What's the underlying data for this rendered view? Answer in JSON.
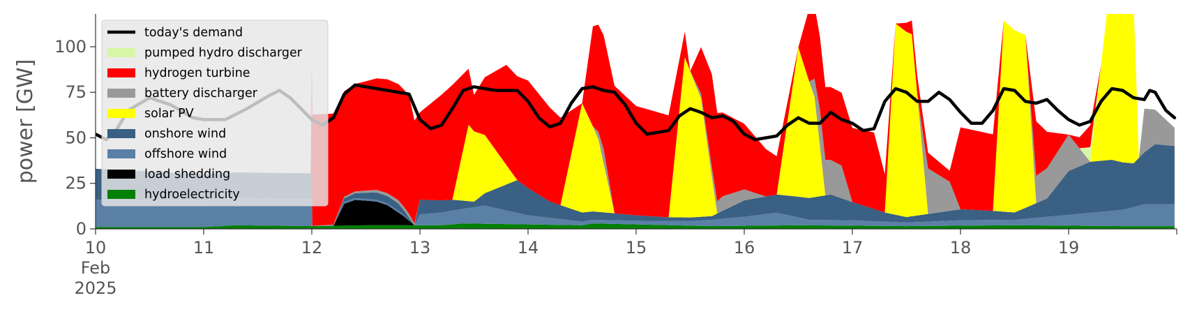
{
  "chart_data": {
    "type": "area",
    "ylabel": "power [GW]",
    "xlabel": "",
    "ylim": [
      0,
      118
    ],
    "yticks": [
      0,
      25,
      50,
      75,
      100
    ],
    "xlim": [
      10,
      20
    ],
    "xticks": [
      {
        "x": 10,
        "lines": [
          "10",
          "Feb",
          "2025"
        ]
      },
      {
        "x": 11,
        "lines": [
          "11"
        ]
      },
      {
        "x": 12,
        "lines": [
          "12"
        ]
      },
      {
        "x": 13,
        "lines": [
          "13"
        ]
      },
      {
        "x": 14,
        "lines": [
          "14"
        ]
      },
      {
        "x": 15,
        "lines": [
          "15"
        ]
      },
      {
        "x": 16,
        "lines": [
          "16"
        ]
      },
      {
        "x": 17,
        "lines": [
          "17"
        ]
      },
      {
        "x": 18,
        "lines": [
          "18"
        ]
      },
      {
        "x": 19,
        "lines": [
          "19"
        ]
      }
    ],
    "grid": false,
    "legend_position": "top-left",
    "series": [
      {
        "name": "hydroelectricity",
        "color": "#008000",
        "points": [
          [
            10,
            1
          ],
          [
            11,
            1
          ],
          [
            11.3,
            2
          ],
          [
            12,
            1.5
          ],
          [
            12.5,
            2
          ],
          [
            12.9,
            2
          ],
          [
            13.2,
            2
          ],
          [
            13.4,
            3
          ],
          [
            14.5,
            2
          ],
          [
            14.6,
            3
          ],
          [
            15.7,
            1.5
          ],
          [
            16.5,
            2
          ],
          [
            17.5,
            1.5
          ],
          [
            18.5,
            2
          ],
          [
            19.5,
            1.5
          ],
          [
            19.98,
            1.5
          ]
        ]
      },
      {
        "name": "load shedding",
        "color": "#000000",
        "points": [
          [
            12,
            0
          ],
          [
            12.2,
            0
          ],
          [
            12.3,
            12
          ],
          [
            12.4,
            14
          ],
          [
            12.6,
            13
          ],
          [
            12.7,
            11
          ],
          [
            12.85,
            5
          ],
          [
            12.95,
            0
          ],
          [
            19.98,
            0
          ]
        ]
      },
      {
        "name": "offshore wind",
        "color": "#5b80a6",
        "points": [
          [
            10,
            15
          ],
          [
            11,
            15
          ],
          [
            12,
            15
          ],
          [
            12,
            0
          ],
          [
            12.2,
            0
          ],
          [
            12.3,
            1
          ],
          [
            12.8,
            1
          ],
          [
            12.95,
            0
          ],
          [
            13,
            6
          ],
          [
            13.4,
            8
          ],
          [
            13.6,
            10
          ],
          [
            14,
            5
          ],
          [
            14.5,
            2
          ],
          [
            15,
            2
          ],
          [
            15.5,
            2.5
          ],
          [
            16,
            5
          ],
          [
            16.3,
            7
          ],
          [
            16.6,
            3
          ],
          [
            17,
            3
          ],
          [
            17.5,
            2
          ],
          [
            18,
            3
          ],
          [
            18.5,
            3
          ],
          [
            19,
            6
          ],
          [
            19.5,
            9
          ],
          [
            19.7,
            12
          ],
          [
            19.98,
            12
          ]
        ]
      },
      {
        "name": "onshore wind",
        "color": "#3a6083",
        "points": [
          [
            10,
            17
          ],
          [
            11,
            14
          ],
          [
            11.5,
            14
          ],
          [
            12,
            14
          ],
          [
            12,
            0
          ],
          [
            12.2,
            0
          ],
          [
            12.3,
            2
          ],
          [
            12.6,
            4
          ],
          [
            12.8,
            4
          ],
          [
            12.95,
            0
          ],
          [
            13,
            8
          ],
          [
            13.3,
            6
          ],
          [
            13.5,
            3
          ],
          [
            13.9,
            18
          ],
          [
            14.2,
            9
          ],
          [
            14.5,
            5
          ],
          [
            15,
            3
          ],
          [
            15.3,
            2
          ],
          [
            15.7,
            2
          ],
          [
            16,
            9
          ],
          [
            16.3,
            10
          ],
          [
            16.6,
            12
          ],
          [
            16.8,
            14
          ],
          [
            17,
            10
          ],
          [
            17.3,
            5
          ],
          [
            17.5,
            3
          ],
          [
            18,
            6
          ],
          [
            18.3,
            5
          ],
          [
            18.5,
            4
          ],
          [
            18.8,
            10
          ],
          [
            19,
            24
          ],
          [
            19.2,
            28
          ],
          [
            19.4,
            28
          ],
          [
            19.6,
            24
          ],
          [
            19.8,
            33
          ],
          [
            19.98,
            32
          ]
        ]
      },
      {
        "name": "solar PV",
        "color": "#ffff00",
        "points": [
          [
            10,
            0
          ],
          [
            12.95,
            0
          ],
          [
            13.3,
            0
          ],
          [
            13.45,
            42
          ],
          [
            13.6,
            32
          ],
          [
            13.9,
            0
          ],
          [
            14.3,
            0
          ],
          [
            14.5,
            60
          ],
          [
            14.65,
            40
          ],
          [
            14.8,
            0
          ],
          [
            15.3,
            0
          ],
          [
            15.45,
            88
          ],
          [
            15.6,
            65
          ],
          [
            15.75,
            0
          ],
          [
            16.3,
            0
          ],
          [
            16.5,
            82
          ],
          [
            16.65,
            55
          ],
          [
            16.75,
            0
          ],
          [
            17.3,
            0
          ],
          [
            17.4,
            105
          ],
          [
            17.55,
            100
          ],
          [
            17.7,
            0
          ],
          [
            18.3,
            0
          ],
          [
            18.4,
            105
          ],
          [
            18.6,
            95
          ],
          [
            18.7,
            0
          ],
          [
            19.2,
            0
          ],
          [
            19.4,
            105
          ],
          [
            19.6,
            90
          ],
          [
            19.65,
            0
          ],
          [
            19.98,
            0
          ]
        ]
      },
      {
        "name": "battery discharger",
        "color": "#999999",
        "points": [
          [
            10,
            0
          ],
          [
            11.9,
            0
          ],
          [
            12.9,
            2
          ],
          [
            13,
            0
          ],
          [
            14.6,
            0
          ],
          [
            14.7,
            8
          ],
          [
            14.8,
            0
          ],
          [
            15.5,
            0
          ],
          [
            15.8,
            8
          ],
          [
            16,
            6
          ],
          [
            16.2,
            0
          ],
          [
            16.6,
            0
          ],
          [
            16.7,
            20
          ],
          [
            16.9,
            18
          ],
          [
            17,
            0
          ],
          [
            17.6,
            0
          ],
          [
            17.7,
            25
          ],
          [
            17.9,
            16
          ],
          [
            18,
            0
          ],
          [
            18.6,
            0
          ],
          [
            18.7,
            15
          ],
          [
            19,
            20
          ],
          [
            19.2,
            0
          ],
          [
            19.65,
            0
          ],
          [
            19.7,
            24
          ],
          [
            19.98,
            10
          ]
        ]
      },
      {
        "name": "pumped hydro discharger",
        "color": "#d7f7a6",
        "points": [
          [
            10,
            0
          ],
          [
            19.1,
            0
          ],
          [
            19.2,
            8
          ],
          [
            19.3,
            0
          ],
          [
            19.98,
            0
          ]
        ]
      },
      {
        "name": "hydrogen turbine",
        "color": "#ff0000",
        "points": [
          [
            10,
            0
          ],
          [
            11.99,
            0
          ],
          [
            12,
            61
          ],
          [
            12.2,
            61
          ],
          [
            12.3,
            58
          ],
          [
            12.5,
            60
          ],
          [
            12.9,
            65
          ],
          [
            13,
            48
          ],
          [
            13.3,
            63
          ],
          [
            13.5,
            20
          ],
          [
            13.8,
            55
          ],
          [
            14,
            59
          ],
          [
            14.3,
            48
          ],
          [
            14.5,
            0
          ],
          [
            14.6,
            55
          ],
          [
            14.8,
            70
          ],
          [
            15,
            60
          ],
          [
            15.3,
            56
          ],
          [
            15.5,
            0
          ],
          [
            15.7,
            51
          ],
          [
            16,
            36
          ],
          [
            16.3,
            21
          ],
          [
            16.5,
            0
          ],
          [
            16.6,
            40
          ],
          [
            16.9,
            40
          ],
          [
            17.2,
            42
          ],
          [
            17.4,
            0
          ],
          [
            17.6,
            10
          ],
          [
            17.9,
            6
          ],
          [
            18,
            45
          ],
          [
            18.3,
            42
          ],
          [
            18.4,
            0
          ],
          [
            18.6,
            0
          ],
          [
            18.7,
            30
          ],
          [
            19,
            0
          ],
          [
            19.2,
            12
          ],
          [
            19.3,
            0
          ],
          [
            19.6,
            0
          ],
          [
            19.8,
            0
          ],
          [
            19.98,
            0
          ]
        ]
      }
    ],
    "demand": {
      "name": "today's demand",
      "color": "#000000",
      "points": [
        [
          10,
          52
        ],
        [
          10.1,
          49
        ],
        [
          10.2,
          55
        ],
        [
          10.3,
          65
        ],
        [
          10.5,
          72
        ],
        [
          10.7,
          68
        ],
        [
          10.9,
          61
        ],
        [
          11,
          60
        ],
        [
          11.2,
          60
        ],
        [
          11.4,
          66
        ],
        [
          11.6,
          73
        ],
        [
          11.7,
          76
        ],
        [
          11.8,
          72
        ],
        [
          12,
          60
        ],
        [
          12.1,
          57
        ],
        [
          12.2,
          61
        ],
        [
          12.3,
          74
        ],
        [
          12.4,
          79
        ],
        [
          12.6,
          77
        ],
        [
          12.8,
          75
        ],
        [
          12.9,
          74
        ],
        [
          13,
          60
        ],
        [
          13.1,
          55
        ],
        [
          13.2,
          57
        ],
        [
          13.3,
          66
        ],
        [
          13.4,
          76
        ],
        [
          13.5,
          78
        ],
        [
          13.7,
          76
        ],
        [
          13.9,
          76
        ],
        [
          14,
          70
        ],
        [
          14.1,
          61
        ],
        [
          14.2,
          56
        ],
        [
          14.3,
          58
        ],
        [
          14.4,
          69
        ],
        [
          14.5,
          77
        ],
        [
          14.6,
          78
        ],
        [
          14.7,
          76
        ],
        [
          14.8,
          75
        ],
        [
          14.9,
          68
        ],
        [
          15,
          58
        ],
        [
          15.1,
          52
        ],
        [
          15.3,
          54
        ],
        [
          15.4,
          62
        ],
        [
          15.5,
          66
        ],
        [
          15.6,
          64
        ],
        [
          15.7,
          61
        ],
        [
          15.8,
          62
        ],
        [
          15.9,
          59
        ],
        [
          16,
          52
        ],
        [
          16.1,
          49
        ],
        [
          16.3,
          51
        ],
        [
          16.4,
          57
        ],
        [
          16.5,
          61
        ],
        [
          16.6,
          58
        ],
        [
          16.7,
          58
        ],
        [
          16.8,
          64
        ],
        [
          16.9,
          60
        ],
        [
          17,
          58
        ],
        [
          17.1,
          54
        ],
        [
          17.2,
          55
        ],
        [
          17.3,
          70
        ],
        [
          17.4,
          77
        ],
        [
          17.5,
          75
        ],
        [
          17.6,
          70
        ],
        [
          17.7,
          70
        ],
        [
          17.8,
          75
        ],
        [
          17.9,
          71
        ],
        [
          18,
          64
        ],
        [
          18.1,
          58
        ],
        [
          18.2,
          58
        ],
        [
          18.3,
          65
        ],
        [
          18.4,
          77
        ],
        [
          18.5,
          76
        ],
        [
          18.6,
          70
        ],
        [
          18.7,
          69
        ],
        [
          18.8,
          71
        ],
        [
          18.9,
          65
        ],
        [
          19,
          60
        ],
        [
          19.1,
          57
        ],
        [
          19.2,
          59
        ],
        [
          19.3,
          70
        ],
        [
          19.4,
          77
        ],
        [
          19.5,
          76
        ],
        [
          19.6,
          72
        ],
        [
          19.7,
          71
        ],
        [
          19.75,
          76
        ],
        [
          19.8,
          75
        ],
        [
          19.9,
          65
        ],
        [
          19.98,
          61
        ]
      ]
    },
    "legend": [
      {
        "label": "today's demand",
        "color": "#000000",
        "kind": "line"
      },
      {
        "label": "pumped hydro discharger",
        "color": "#d7f7a6",
        "kind": "patch"
      },
      {
        "label": "hydrogen turbine",
        "color": "#ff0000",
        "kind": "patch"
      },
      {
        "label": "battery discharger",
        "color": "#999999",
        "kind": "patch"
      },
      {
        "label": "solar PV",
        "color": "#ffff00",
        "kind": "patch"
      },
      {
        "label": "onshore wind",
        "color": "#3a6083",
        "kind": "patch"
      },
      {
        "label": "offshore wind",
        "color": "#5b80a6",
        "kind": "patch"
      },
      {
        "label": "load shedding",
        "color": "#000000",
        "kind": "patch"
      },
      {
        "label": "hydroelectricity",
        "color": "#008000",
        "kind": "patch"
      }
    ]
  }
}
